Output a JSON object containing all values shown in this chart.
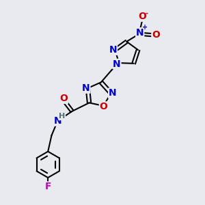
{
  "bg_color": "#e8eaf0",
  "bond_color": "#000000",
  "bond_width": 1.5,
  "atom_colors": {
    "C": "#000000",
    "N": "#0000cc",
    "O": "#cc0000",
    "F": "#cc00cc",
    "H": "#507070"
  },
  "font_size": 10,
  "font_size_small": 8,
  "font_size_charge": 7
}
